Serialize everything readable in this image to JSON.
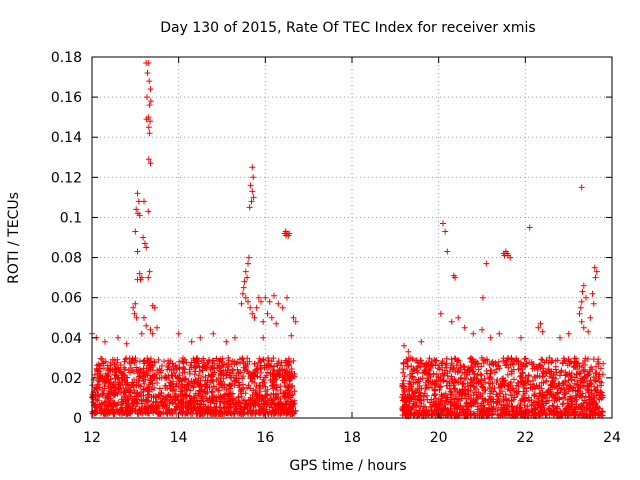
{
  "chart_data": {
    "type": "scatter",
    "title": "Day 130 of 2015, Rate Of TEC Index for receiver xmis",
    "xlabel": "GPS time / hours",
    "ylabel": "ROTI / TECUs",
    "xlim": [
      12,
      24
    ],
    "ylim": [
      0,
      0.18
    ],
    "xticks": [
      "12",
      "14",
      "16",
      "18",
      "20",
      "22",
      "24"
    ],
    "yticks": [
      "0",
      "0.02",
      "0.04",
      "0.06",
      "0.08",
      "0.1",
      "0.12",
      "0.14",
      "0.16",
      "0.18"
    ],
    "grid": true,
    "marker": "+",
    "color": "#ff0000",
    "series": [
      {
        "name": "ROTI",
        "points": [
          [
            13.25,
            0.177
          ],
          [
            13.3,
            0.177
          ],
          [
            13.28,
            0.172
          ],
          [
            13.32,
            0.168
          ],
          [
            13.35,
            0.164
          ],
          [
            13.27,
            0.16
          ],
          [
            13.33,
            0.156
          ],
          [
            13.36,
            0.158
          ],
          [
            13.3,
            0.15
          ],
          [
            13.34,
            0.148
          ],
          [
            13.26,
            0.149
          ],
          [
            13.31,
            0.145
          ],
          [
            13.33,
            0.142
          ],
          [
            13.31,
            0.129
          ],
          [
            13.35,
            0.127
          ],
          [
            13.05,
            0.112
          ],
          [
            13.08,
            0.108
          ],
          [
            13.02,
            0.104
          ],
          [
            13.06,
            0.102
          ],
          [
            13.1,
            0.101
          ],
          [
            13.2,
            0.108
          ],
          [
            13.3,
            0.103
          ],
          [
            13.0,
            0.093
          ],
          [
            13.18,
            0.09
          ],
          [
            13.22,
            0.087
          ],
          [
            13.25,
            0.085
          ],
          [
            13.05,
            0.083
          ],
          [
            13.1,
            0.072
          ],
          [
            13.15,
            0.07
          ],
          [
            13.12,
            0.069
          ],
          [
            13.05,
            0.069
          ],
          [
            13.3,
            0.07
          ],
          [
            13.33,
            0.073
          ],
          [
            12.95,
            0.055
          ],
          [
            13.0,
            0.057
          ],
          [
            12.98,
            0.052
          ],
          [
            13.03,
            0.05
          ],
          [
            13.4,
            0.056
          ],
          [
            13.45,
            0.055
          ],
          [
            13.2,
            0.05
          ],
          [
            13.25,
            0.046
          ],
          [
            13.35,
            0.044
          ],
          [
            13.4,
            0.042
          ],
          [
            13.5,
            0.045
          ],
          [
            13.15,
            0.042
          ],
          [
            15.7,
            0.125
          ],
          [
            15.72,
            0.12
          ],
          [
            15.66,
            0.116
          ],
          [
            15.7,
            0.113
          ],
          [
            15.68,
            0.108
          ],
          [
            15.64,
            0.105
          ],
          [
            15.73,
            0.11
          ],
          [
            15.55,
            0.073
          ],
          [
            15.6,
            0.077
          ],
          [
            15.62,
            0.08
          ],
          [
            15.58,
            0.07
          ],
          [
            15.52,
            0.068
          ],
          [
            15.5,
            0.065
          ],
          [
            15.48,
            0.062
          ],
          [
            15.55,
            0.06
          ],
          [
            15.6,
            0.058
          ],
          [
            15.45,
            0.057
          ],
          [
            15.65,
            0.055
          ],
          [
            15.7,
            0.052
          ],
          [
            15.75,
            0.05
          ],
          [
            15.8,
            0.055
          ],
          [
            15.85,
            0.06
          ],
          [
            15.9,
            0.058
          ],
          [
            16.0,
            0.06
          ],
          [
            16.1,
            0.058
          ],
          [
            16.2,
            0.061
          ],
          [
            16.3,
            0.057
          ],
          [
            16.4,
            0.055
          ],
          [
            16.5,
            0.06
          ],
          [
            16.05,
            0.052
          ],
          [
            15.95,
            0.048
          ],
          [
            16.15,
            0.05
          ],
          [
            16.25,
            0.047
          ],
          [
            16.45,
            0.092
          ],
          [
            16.48,
            0.091
          ],
          [
            16.5,
            0.092
          ],
          [
            16.53,
            0.091
          ],
          [
            16.47,
            0.093
          ],
          [
            16.55,
            0.092
          ],
          [
            16.65,
            0.05
          ],
          [
            16.7,
            0.048
          ],
          [
            20.1,
            0.097
          ],
          [
            20.15,
            0.093
          ],
          [
            20.2,
            0.083
          ],
          [
            20.35,
            0.071
          ],
          [
            20.38,
            0.07
          ],
          [
            21.5,
            0.082
          ],
          [
            21.55,
            0.083
          ],
          [
            21.6,
            0.081
          ],
          [
            21.52,
            0.081
          ],
          [
            21.58,
            0.082
          ],
          [
            21.65,
            0.08
          ],
          [
            21.1,
            0.077
          ],
          [
            21.02,
            0.06
          ],
          [
            22.1,
            0.095
          ],
          [
            23.3,
            0.115
          ],
          [
            23.6,
            0.075
          ],
          [
            23.65,
            0.073
          ],
          [
            23.62,
            0.07
          ],
          [
            23.35,
            0.066
          ],
          [
            23.32,
            0.063
          ],
          [
            23.3,
            0.058
          ],
          [
            23.4,
            0.06
          ],
          [
            23.28,
            0.055
          ],
          [
            23.25,
            0.052
          ],
          [
            23.3,
            0.048
          ],
          [
            23.35,
            0.045
          ],
          [
            23.55,
            0.062
          ],
          [
            23.58,
            0.057
          ],
          [
            23.5,
            0.05
          ],
          [
            23.45,
            0.043
          ],
          [
            20.05,
            0.052
          ],
          [
            20.3,
            0.048
          ],
          [
            20.45,
            0.05
          ],
          [
            20.6,
            0.045
          ],
          [
            20.8,
            0.042
          ],
          [
            21.0,
            0.044
          ],
          [
            21.2,
            0.04
          ],
          [
            21.4,
            0.042
          ],
          [
            22.3,
            0.045
          ],
          [
            22.35,
            0.047
          ],
          [
            22.4,
            0.043
          ],
          [
            22.8,
            0.04
          ],
          [
            23.0,
            0.042
          ],
          [
            21.9,
            0.04
          ],
          [
            12.0,
            0.042
          ],
          [
            12.1,
            0.04
          ],
          [
            12.3,
            0.038
          ],
          [
            12.6,
            0.04
          ],
          [
            12.8,
            0.037
          ],
          [
            14.0,
            0.042
          ],
          [
            14.3,
            0.038
          ],
          [
            14.5,
            0.04
          ],
          [
            14.8,
            0.042
          ],
          [
            15.1,
            0.038
          ],
          [
            15.3,
            0.04
          ],
          [
            15.95,
            0.04
          ],
          [
            16.6,
            0.041
          ],
          [
            19.2,
            0.036
          ],
          [
            19.3,
            0.033
          ],
          [
            19.6,
            0.038
          ]
        ]
      }
    ],
    "clusters": [
      {
        "name": "dense-band-morning",
        "x": [
          12.0,
          16.7
        ],
        "y": [
          0.002,
          0.03
        ],
        "density": 1600
      },
      {
        "name": "dense-band-evening",
        "x": [
          19.15,
          23.8
        ],
        "y": [
          0.001,
          0.03
        ],
        "density": 1500
      }
    ]
  }
}
